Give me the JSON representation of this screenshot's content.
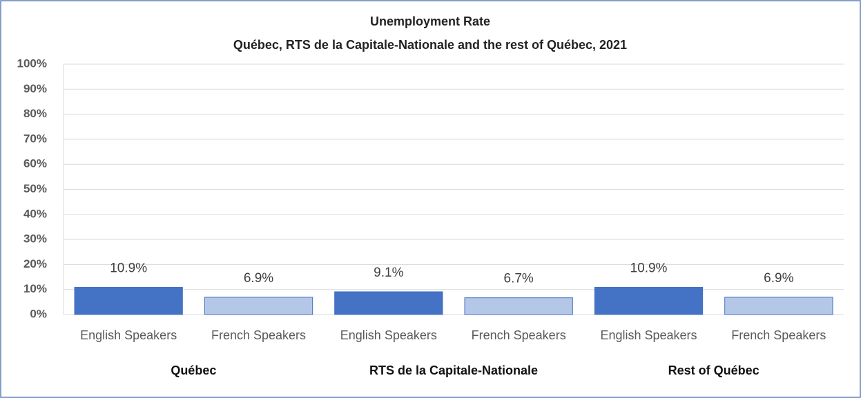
{
  "chart_data": {
    "type": "bar",
    "title": "Unemployment Rate",
    "subtitle": "Québec, RTS de la Capitale-Nationale  and the rest of Québec, 2021",
    "categories": [
      "English Speakers",
      "French Speakers",
      "English Speakers",
      "French Speakers",
      "English Speakers",
      "French Speakers"
    ],
    "groups": [
      "Québec",
      "RTS de la Capitale-Nationale",
      "Rest of Québec"
    ],
    "values": [
      10.9,
      6.9,
      9.1,
      6.7,
      10.9,
      6.9
    ],
    "value_labels": [
      "10.9%",
      "6.9%",
      "9.1%",
      "6.7%",
      "10.9%",
      "6.9%"
    ],
    "colors": [
      "#4472c4",
      "#b4c7e7",
      "#4472c4",
      "#b4c7e7",
      "#4472c4",
      "#b4c7e7"
    ],
    "ylim": [
      0,
      100
    ],
    "yticks": [
      {
        "value": 0,
        "label": "0%"
      },
      {
        "value": 10,
        "label": "10%"
      },
      {
        "value": 20,
        "label": "20%"
      },
      {
        "value": 30,
        "label": "30%"
      },
      {
        "value": 40,
        "label": "40%"
      },
      {
        "value": 50,
        "label": "50%"
      },
      {
        "value": 60,
        "label": "60%"
      },
      {
        "value": 70,
        "label": "70%"
      },
      {
        "value": 80,
        "label": "80%"
      },
      {
        "value": 90,
        "label": "90%"
      },
      {
        "value": 100,
        "label": "100%"
      }
    ],
    "grid": true
  }
}
